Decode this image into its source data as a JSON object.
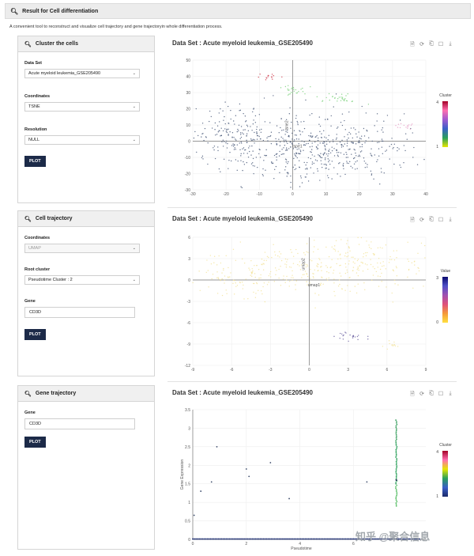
{
  "header": {
    "title": "Result for Cell differentiation",
    "intro": "A convenient tool to reconstruct and visualize cell trajectory and gene trajectoryin whole differentiation process."
  },
  "panels": {
    "cluster": {
      "title": "Cluster the cells",
      "dataset_label": "Data Set",
      "dataset_value": "Acute myeloid leukemia_GSE205490",
      "coordinates_label": "Coordinates",
      "coordinates_value": "TSNE",
      "resolution_label": "Resolution",
      "resolution_value": "NULL",
      "plot_label": "PLOT"
    },
    "trajectory": {
      "title": "Cell trajectory",
      "coordinates_label": "Coordinates",
      "coordinates_value": "UMAP",
      "root_label": "Root cluster",
      "root_value": "Pseudotime Cluster : 2",
      "gene_label": "Gene",
      "gene_value": "CD3D",
      "plot_label": "PLOT"
    },
    "gene": {
      "title": "Gene trajectory",
      "gene_label": "Gene",
      "gene_value": "CD3D",
      "plot_label": "PLOT"
    }
  },
  "toolbar_icons": [
    "document-icon",
    "refresh-icon",
    "restore-icon",
    "crop-icon",
    "download-icon"
  ],
  "chart_data": [
    {
      "type": "scatter",
      "title": "Data Set : Acute myeloid leukemia_GSE205490",
      "xlabel": "tsne1",
      "ylabel": "tsne2",
      "xlim": [
        -30,
        40
      ],
      "ylim": [
        -30,
        50
      ],
      "xticks": [
        -30,
        -20,
        -10,
        0,
        10,
        20,
        30,
        40
      ],
      "yticks": [
        50,
        40,
        30,
        20,
        10,
        0,
        -10,
        -20,
        -30
      ],
      "legend": {
        "title": "Cluster",
        "max": "4",
        "min": "1",
        "colors": [
          "#a50026",
          "#ff6fb0",
          "#a05ad0",
          "#3a5fc8",
          "#2aa05a",
          "#e6e600"
        ]
      },
      "groups": [
        {
          "name": "main",
          "color": "#4a5a7a",
          "cx": 8,
          "cy": -5,
          "sx": 14,
          "sy": 10,
          "n": 520
        },
        {
          "name": "left",
          "color": "#4a5a7a",
          "cx": -18,
          "cy": 5,
          "sx": 6,
          "sy": 9,
          "n": 160
        },
        {
          "name": "green-a",
          "color": "#7fd27f",
          "cx": 0,
          "cy": 31,
          "sx": 2.5,
          "sy": 1.5,
          "n": 25
        },
        {
          "name": "green-b",
          "color": "#7fd27f",
          "cx": 14,
          "cy": 26,
          "sx": 3,
          "sy": 2,
          "n": 30
        },
        {
          "name": "red",
          "color": "#d04050",
          "cx": -7,
          "cy": 40,
          "sx": 1.5,
          "sy": 1,
          "n": 14
        },
        {
          "name": "pink",
          "color": "#e6a0c8",
          "cx": 34,
          "cy": 9,
          "sx": 2,
          "sy": 1,
          "n": 14
        }
      ]
    },
    {
      "type": "scatter",
      "title": "Data Set : Acute myeloid leukemia_GSE205490",
      "xlabel": "umap1",
      "ylabel": "umap2",
      "xlim": [
        -9,
        9
      ],
      "ylim": [
        -12,
        6
      ],
      "xticks": [
        -9,
        -6,
        -3,
        0,
        3,
        6,
        9
      ],
      "yticks": [
        6,
        3,
        0,
        -3,
        -6,
        -9,
        -12
      ],
      "legend": {
        "title": "Value",
        "max": "3",
        "min": "0",
        "colors": [
          "#0a0a6e",
          "#5050c8",
          "#a050b0",
          "#e0507a",
          "#f59a3a",
          "#ffe040"
        ]
      },
      "groups": [
        {
          "name": "yellow-main",
          "color": "#f3e39a",
          "cx": 3,
          "cy": 2,
          "sx": 3.5,
          "sy": 2,
          "n": 300
        },
        {
          "name": "yellow-left",
          "color": "#f3e39a",
          "cx": -5,
          "cy": 0.5,
          "sx": 2,
          "sy": 1.5,
          "n": 120
        },
        {
          "name": "yellow-low",
          "color": "#f3e39a",
          "cx": 6.5,
          "cy": -9,
          "sx": 0.5,
          "sy": 0.3,
          "n": 12
        },
        {
          "name": "purple",
          "color": "#6a5fa0",
          "cx": 3,
          "cy": -8,
          "sx": 0.6,
          "sy": 0.3,
          "n": 22
        }
      ]
    },
    {
      "type": "scatter",
      "title": "Data Set : Acute myeloid leukemia_GSE205490",
      "xlabel": "Pseudotime",
      "ylabel": "Gene Expression",
      "xlim": [
        0,
        8.7
      ],
      "ylim": [
        0,
        3.5
      ],
      "xticks": [
        0,
        2,
        4,
        6
      ],
      "yticks": [
        3.5,
        3,
        2.5,
        2,
        1.5,
        1,
        0.5,
        0
      ],
      "legend": {
        "title": "Cluster",
        "max": "4",
        "min": "1",
        "colors": [
          "#a50026",
          "#ff6fb0",
          "#e6e600",
          "#2aa05a",
          "#3a5fc8",
          "#1a2a6a"
        ]
      },
      "points": [
        [
          0.3,
          1.3
        ],
        [
          0.7,
          1.55
        ],
        [
          0.9,
          2.5
        ],
        [
          2.0,
          1.9
        ],
        [
          2.1,
          1.7
        ],
        [
          2.9,
          2.07
        ],
        [
          3.6,
          1.1
        ],
        [
          6.5,
          1.55
        ],
        [
          0.05,
          0.65
        ]
      ]
    }
  ]
}
